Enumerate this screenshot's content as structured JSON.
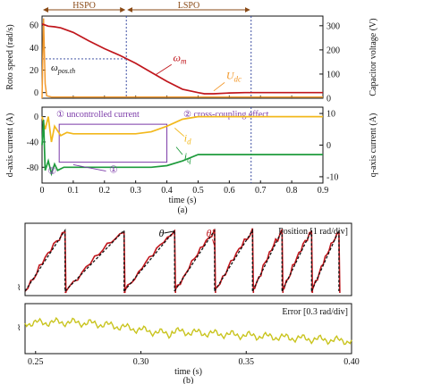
{
  "chart_data": [
    {
      "type": "line",
      "phases": [
        {
          "label": "HSPO",
          "x0": 0.0,
          "x1": 0.27
        },
        {
          "label": "LSPO",
          "x0": 0.27,
          "x1": 0.67
        }
      ],
      "xlim": [
        0,
        0.9
      ],
      "ylim_left": [
        -5,
        68
      ],
      "ylim_right": [
        0,
        340
      ],
      "ylabel": "Roto speed (rad/s)",
      "ylabel_right": "Capacitor voltage (V)",
      "yticks_left": [
        "0",
        "20",
        "40",
        "60"
      ],
      "yticks_right": [
        "0",
        "100",
        "200",
        "300"
      ],
      "threshold": {
        "label": "ωpos.th",
        "label_main": "ω",
        "label_sub": "pos.th",
        "value": 30,
        "x_end": 0.27
      },
      "series": [
        {
          "name": "ωm",
          "name_main": "ω",
          "name_sub": "m",
          "axis": "left",
          "color": "#c0161c",
          "x": [
            0,
            0.01,
            0.02,
            0.04,
            0.06,
            0.1,
            0.15,
            0.2,
            0.25,
            0.3,
            0.35,
            0.4,
            0.45,
            0.5,
            0.52,
            0.55,
            0.6,
            0.65,
            0.7,
            0.8,
            0.9
          ],
          "y": [
            61,
            60,
            59,
            58.5,
            57.5,
            53.5,
            46,
            39,
            33,
            26,
            18,
            10,
            3,
            0,
            -1,
            -1,
            -0.3,
            0,
            0,
            0,
            0
          ]
        },
        {
          "name": "Udc",
          "name_main": "U",
          "name_sub": "dc",
          "axis": "right",
          "color": "#f39a2e",
          "x": [
            0,
            0.005,
            0.01,
            0.015,
            0.03,
            0.1,
            0.2,
            0.3,
            0.4,
            0.5,
            0.55,
            0.6,
            0.7,
            0.8,
            0.9
          ],
          "y": [
            0,
            330,
            60,
            10,
            5,
            5,
            5,
            5,
            5,
            5,
            5,
            5,
            5,
            5,
            5
          ]
        }
      ]
    },
    {
      "type": "line",
      "xlim": [
        0,
        0.9
      ],
      "ylim_left": [
        -105,
        15
      ],
      "ylim_right": [
        -12,
        12
      ],
      "xlabel": "time (s)",
      "xticks": [
        "0",
        "0.1",
        "0.2",
        "0.3",
        "0.4",
        "0.5",
        "0.6",
        "0.7",
        "0.8",
        "0.9"
      ],
      "ylabel": "d-axis current (A)",
      "ylabel_right": "q-axis current (A)",
      "yticks_left": [
        "0",
        "-40",
        "-80"
      ],
      "yticks_right": [
        "10",
        "0",
        "-10"
      ],
      "caption": "(a)",
      "annotations": [
        {
          "marker": "①",
          "text": "uncontrolled current"
        },
        {
          "marker": "②",
          "text": "cross-coupling effect"
        }
      ],
      "markers": [
        "①",
        "②"
      ],
      "series": [
        {
          "name": "id",
          "name_main": "i",
          "name_sub": "d",
          "axis": "left",
          "color": "#f2b81c",
          "x": [
            0,
            0.01,
            0.02,
            0.03,
            0.04,
            0.06,
            0.08,
            0.1,
            0.15,
            0.2,
            0.25,
            0.3,
            0.35,
            0.4,
            0.45,
            0.5,
            0.55,
            0.6,
            0.7,
            0.9
          ],
          "y": [
            0,
            -20,
            0,
            -40,
            -15,
            -30,
            -25,
            -27,
            -27,
            -27,
            -27,
            -27,
            -24,
            -15,
            -4,
            0,
            0,
            0,
            0,
            0
          ]
        },
        {
          "name": "iq",
          "name_main": "i",
          "name_sub": "q",
          "axis": "right",
          "color": "#1e9b3c",
          "x": [
            0,
            0.005,
            0.01,
            0.02,
            0.03,
            0.04,
            0.05,
            0.07,
            0.1,
            0.15,
            0.2,
            0.25,
            0.3,
            0.35,
            0.4,
            0.45,
            0.5,
            0.55,
            0.6,
            0.7,
            0.9
          ],
          "y": [
            0,
            8,
            -8,
            -5,
            -9,
            -6,
            -8,
            -7,
            -7,
            -7,
            -7,
            -7,
            -7,
            -7,
            -6.5,
            -5,
            -3,
            -3,
            -3,
            -3,
            -3
          ]
        }
      ]
    },
    {
      "type": "line",
      "xlim": [
        0.245,
        0.4
      ],
      "legend_label": "Position [1 rad/div]",
      "series": [
        {
          "name": "θ",
          "color": "#111111",
          "style": "dashed"
        },
        {
          "name": "θ̂",
          "color": "#c0161c",
          "style": "solid"
        }
      ],
      "resets": [
        0.264,
        0.292,
        0.316,
        0.335,
        0.353,
        0.367,
        0.381,
        0.394
      ]
    },
    {
      "type": "line",
      "xlim": [
        0.245,
        0.4
      ],
      "legend_label": "Error [0.3 rad/div]",
      "xlabel": "time (s)",
      "xticks": [
        {
          "v": 0.25,
          "label": "0.25"
        },
        {
          "v": 0.3,
          "label": "0.30"
        },
        {
          "v": 0.35,
          "label": "0.35"
        },
        {
          "v": 0.4,
          "label": "0.40"
        }
      ],
      "caption": "(b)",
      "series": [
        {
          "name": "",
          "color": "#c9c41e"
        }
      ]
    }
  ]
}
